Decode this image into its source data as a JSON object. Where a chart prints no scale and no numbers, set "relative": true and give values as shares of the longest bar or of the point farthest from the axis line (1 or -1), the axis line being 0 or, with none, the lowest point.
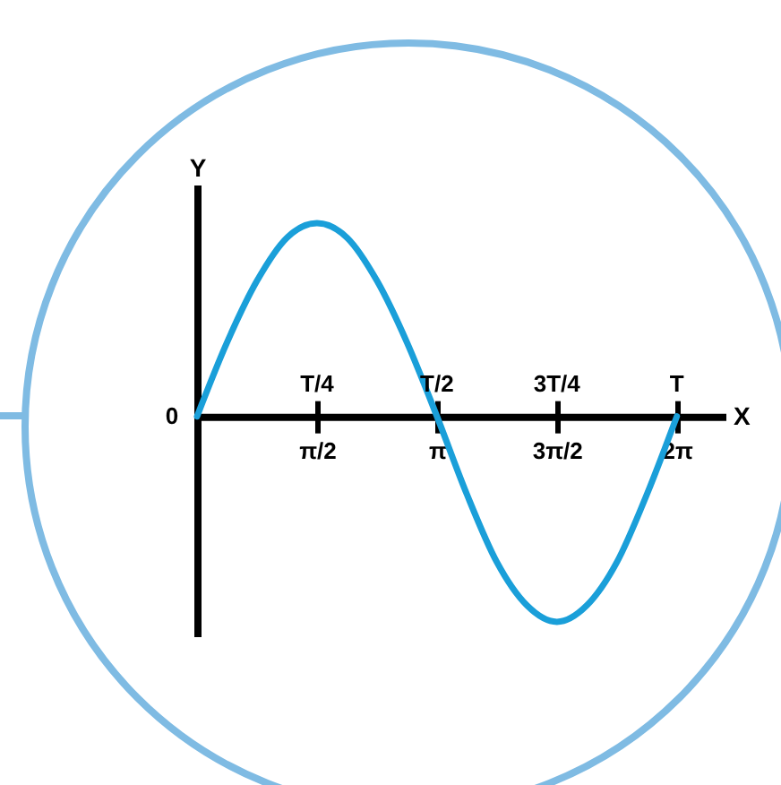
{
  "chart_data": {
    "type": "line",
    "relative": true,
    "xlabel": "X",
    "ylabel": "Y",
    "color": "#1a9fd9",
    "grid": false,
    "line_style": "solid",
    "marker": "none",
    "x": [
      0,
      0.3927,
      0.7854,
      1.1781,
      1.5708,
      1.9635,
      2.3562,
      2.7489,
      3.1416,
      3.5343,
      3.927,
      4.3197,
      4.7124,
      5.1051,
      5.4978,
      5.8905,
      6.2832
    ],
    "values": [
      0,
      0.36,
      0.66,
      0.87,
      0.94,
      0.87,
      0.66,
      0.36,
      0,
      -0.38,
      -0.71,
      -0.92,
      -1,
      -0.92,
      -0.71,
      -0.38,
      0
    ],
    "xlim": [
      0,
      6.92
    ],
    "xticks": [
      {
        "value": 1.5708,
        "label": "π/2"
      },
      {
        "value": 3.1416,
        "label": "π"
      },
      {
        "value": 4.7124,
        "label": "3π/2"
      },
      {
        "value": 6.2832,
        "label": "2π"
      }
    ],
    "annotations": [
      "0",
      "T/4",
      "T/2",
      "3T/4",
      "T"
    ]
  }
}
